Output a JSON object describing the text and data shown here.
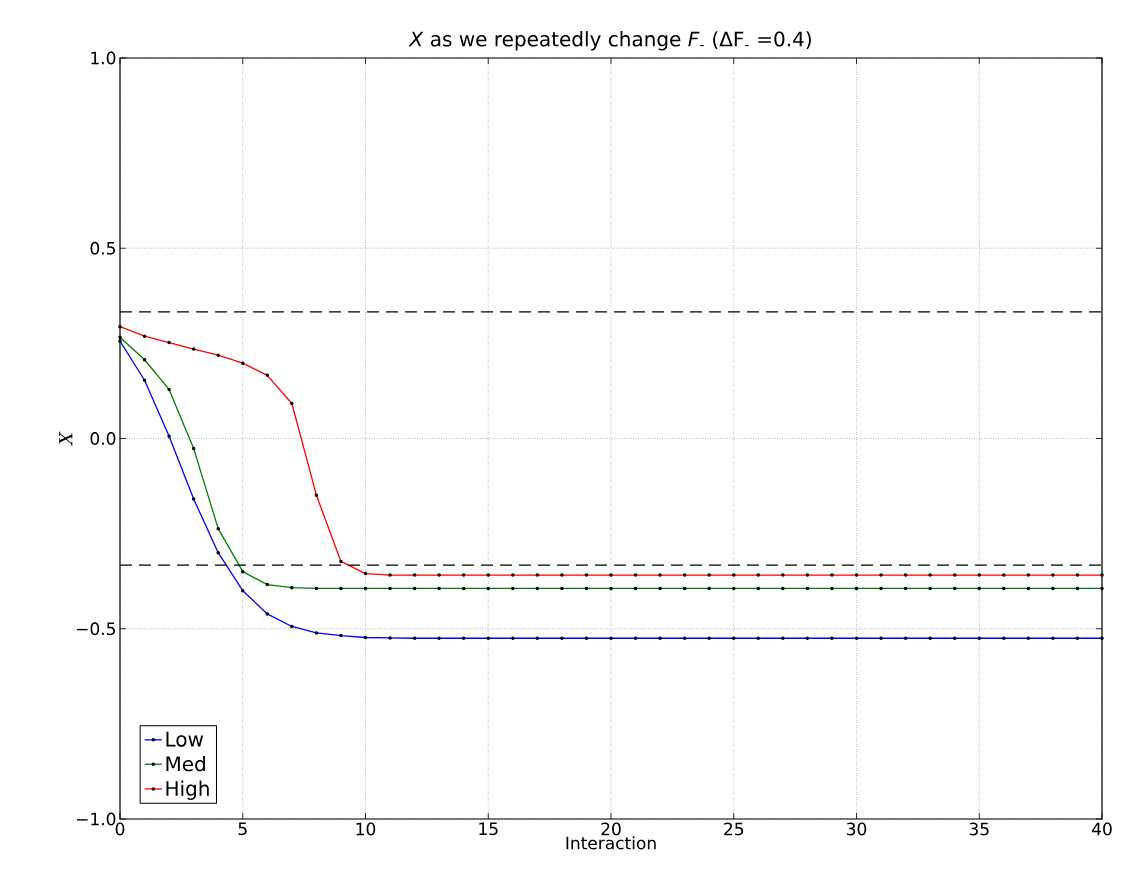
{
  "chart_data": {
    "type": "line",
    "title": "*X* as we repeatedly change *F*$_{-}$ (ΔF$_{-}$ =0.4)",
    "xlabel": "Interaction",
    "ylabel": "X",
    "x": [
      0,
      1,
      2,
      3,
      4,
      5,
      6,
      7,
      8,
      9,
      10,
      11,
      12,
      13,
      14,
      15,
      16,
      17,
      18,
      19,
      20,
      21,
      22,
      23,
      24,
      25,
      26,
      27,
      28,
      29,
      30,
      31,
      32,
      33,
      34,
      35,
      36,
      37,
      38,
      39,
      40
    ],
    "series": [
      {
        "name": "Low",
        "color": "#0000ff",
        "values": [
          0.256,
          0.153,
          0.006,
          -0.159,
          -0.3,
          -0.4,
          -0.461,
          -0.494,
          -0.511,
          -0.518,
          -0.523,
          -0.524,
          -0.525,
          -0.525,
          -0.525,
          -0.525,
          -0.525,
          -0.525,
          -0.525,
          -0.525,
          -0.525,
          -0.525,
          -0.525,
          -0.525,
          -0.525,
          -0.525,
          -0.525,
          -0.525,
          -0.525,
          -0.525,
          -0.525,
          -0.525,
          -0.525,
          -0.525,
          -0.525,
          -0.525,
          -0.525,
          -0.525,
          -0.525,
          -0.525,
          -0.525
        ]
      },
      {
        "name": "Med",
        "color": "#008000",
        "values": [
          0.266,
          0.207,
          0.129,
          -0.026,
          -0.237,
          -0.35,
          -0.384,
          -0.392,
          -0.394,
          -0.394,
          -0.394,
          -0.394,
          -0.394,
          -0.394,
          -0.394,
          -0.394,
          -0.394,
          -0.394,
          -0.394,
          -0.394,
          -0.394,
          -0.394,
          -0.394,
          -0.394,
          -0.394,
          -0.394,
          -0.394,
          -0.394,
          -0.394,
          -0.394,
          -0.394,
          -0.394,
          -0.394,
          -0.394,
          -0.394,
          -0.394,
          -0.394,
          -0.394,
          -0.394,
          -0.394,
          -0.394
        ]
      },
      {
        "name": "High",
        "color": "#ff0000",
        "values": [
          0.294,
          0.269,
          0.252,
          0.235,
          0.219,
          0.198,
          0.166,
          0.092,
          -0.149,
          -0.323,
          -0.355,
          -0.359,
          -0.359,
          -0.359,
          -0.359,
          -0.359,
          -0.359,
          -0.359,
          -0.359,
          -0.359,
          -0.359,
          -0.359,
          -0.359,
          -0.359,
          -0.359,
          -0.359,
          -0.359,
          -0.359,
          -0.359,
          -0.359,
          -0.359,
          -0.359,
          -0.359,
          -0.359,
          -0.359,
          -0.359,
          -0.359,
          -0.359,
          -0.359,
          -0.359,
          -0.359
        ]
      }
    ],
    "xlim": [
      0,
      40
    ],
    "ylim": [
      -1.0,
      1.0
    ],
    "xticks": [
      0,
      5,
      10,
      15,
      20,
      25,
      30,
      35,
      40
    ],
    "yticks": [
      {
        "value": -1.0,
        "label": "−1.0"
      },
      {
        "value": -0.5,
        "label": "−0.5"
      },
      {
        "value": 0.0,
        "label": "0.0"
      },
      {
        "value": 0.5,
        "label": "0.5"
      },
      {
        "value": 1.0,
        "label": "1.0"
      }
    ],
    "ref_lines": [
      {
        "axis": "y",
        "value": 0.333,
        "color": "#000000",
        "line_style": "dashed"
      },
      {
        "axis": "y",
        "value": -0.333,
        "color": "#000000",
        "line_style": "dashed"
      }
    ],
    "grid": true,
    "legend": "bottom left",
    "marker": "circle",
    "line_style": "solid"
  }
}
